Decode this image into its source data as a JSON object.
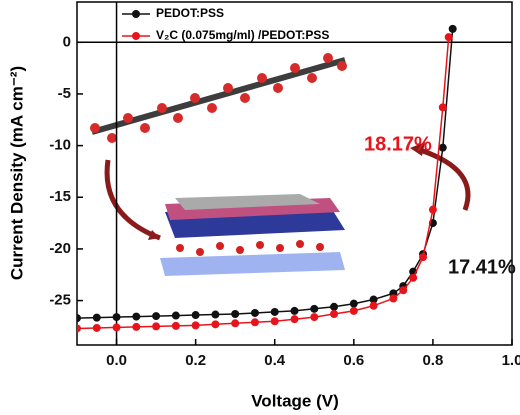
{
  "chart_data": {
    "type": "line",
    "x_label": "Voltage (V)",
    "y_label": "Current Density (mA cm⁻²)",
    "xlim": [
      -0.1,
      1.0
    ],
    "ylim": [
      -29.3,
      3.9
    ],
    "xticks": [
      {
        "value": 0,
        "label": "0.0"
      },
      0.2,
      0.4,
      0.6,
      0.8,
      {
        "value": 1,
        "label": "1.0"
      }
    ],
    "yticks": [
      -25,
      -20,
      -15,
      -10,
      -5,
      0
    ],
    "zero_lines": true,
    "legend": "upper left",
    "series": [
      {
        "name": "PEDOT:PSS",
        "color": "#111111",
        "x": [
          -0.1,
          -0.05,
          0,
          0.05,
          0.1,
          0.15,
          0.2,
          0.25,
          0.3,
          0.35,
          0.4,
          0.45,
          0.5,
          0.55,
          0.6,
          0.65,
          0.7,
          0.725,
          0.75,
          0.775,
          0.8,
          0.825,
          0.85
        ],
        "values": [
          -26.7,
          -26.65,
          -26.6,
          -26.55,
          -26.5,
          -26.45,
          -26.4,
          -26.35,
          -26.3,
          -26.2,
          -26.1,
          -26.0,
          -25.8,
          -25.6,
          -25.3,
          -24.9,
          -24.3,
          -23.6,
          -22.2,
          -20.5,
          -17.5,
          -10.2,
          1.3
        ]
      },
      {
        "name": "V₂C (0.075mg/ml) /PEDOT:PSS",
        "color": "#e8141c",
        "x": [
          -0.1,
          -0.05,
          0,
          0.05,
          0.1,
          0.15,
          0.2,
          0.25,
          0.3,
          0.35,
          0.4,
          0.45,
          0.5,
          0.55,
          0.6,
          0.65,
          0.7,
          0.725,
          0.75,
          0.775,
          0.8,
          0.825,
          0.84
        ],
        "values": [
          -27.7,
          -27.65,
          -27.6,
          -27.55,
          -27.5,
          -27.45,
          -27.4,
          -27.3,
          -27.2,
          -27.1,
          -27.0,
          -26.8,
          -26.6,
          -26.3,
          -26.0,
          -25.5,
          -24.8,
          -24.0,
          -22.8,
          -20.8,
          -16.2,
          -6.3,
          0.5
        ]
      }
    ],
    "annotations": [
      {
        "text": "18.17%",
        "color": "#e8141c"
      },
      {
        "text": "17.41%",
        "color": "#111111"
      }
    ]
  }
}
